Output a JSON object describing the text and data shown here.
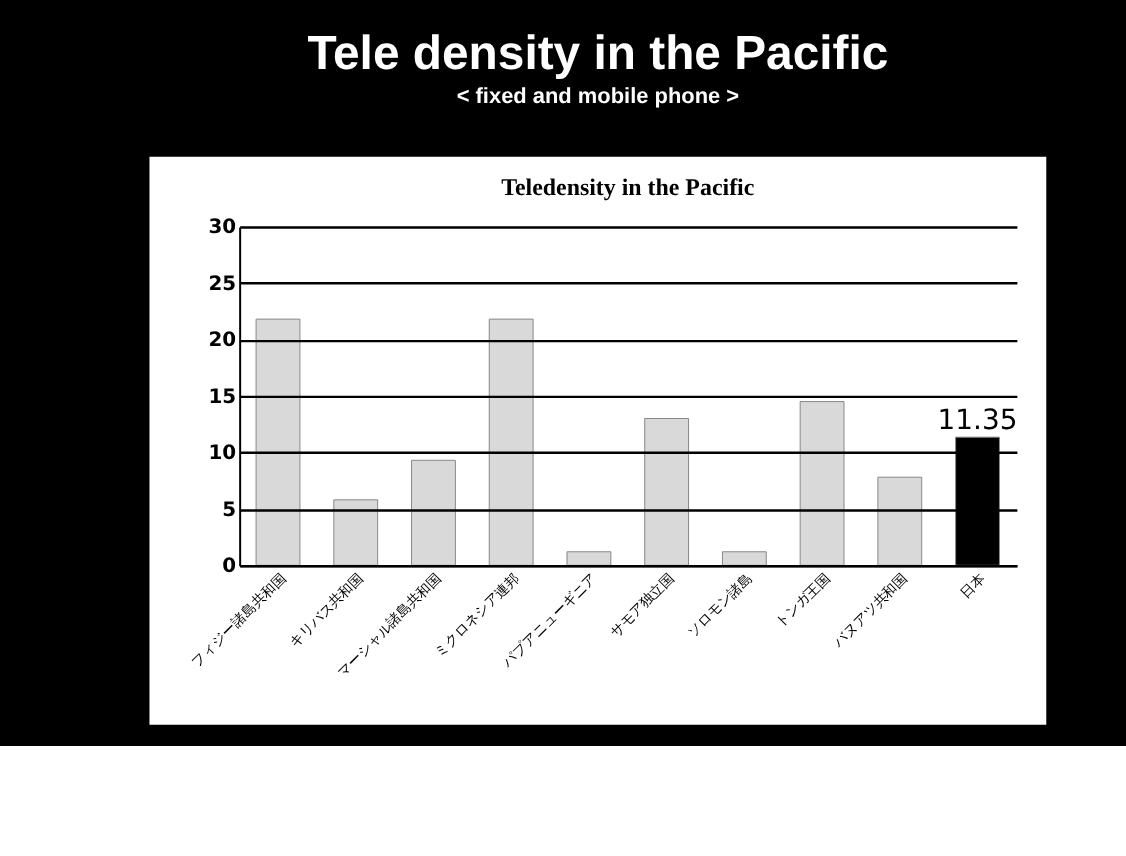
{
  "chart_data": {
    "type": "bar",
    "title": "Teledensity in the Pacific",
    "annotations": [
      "Tele density in the Pacific",
      "< fixed and mobile phone >"
    ],
    "categories": [
      "フィジー諸島共和国",
      "キリバス共和国",
      "マーシャル諸島共和国",
      "ミクロネシア連邦",
      "パプアニューギニア",
      "サモア独立国",
      "ソロモン諸島",
      "トンガ王国",
      "バヌアツ共和国",
      "日本"
    ],
    "values": [
      21.8,
      5.8,
      9.3,
      21.8,
      1.2,
      13,
      1.2,
      14.5,
      7.8,
      11.35
    ],
    "colors": [
      "#d9d9d9",
      "#d9d9d9",
      "#d9d9d9",
      "#d9d9d9",
      "#d9d9d9",
      "#d9d9d9",
      "#d9d9d9",
      "#d9d9d9",
      "#d9d9d9",
      "#000000"
    ],
    "value_labels": [
      null,
      null,
      null,
      null,
      null,
      null,
      null,
      null,
      null,
      "11.35"
    ],
    "ylim": [
      0,
      30
    ],
    "yticks": [
      0,
      5,
      10,
      15,
      20,
      25,
      30
    ],
    "grid": "y"
  }
}
